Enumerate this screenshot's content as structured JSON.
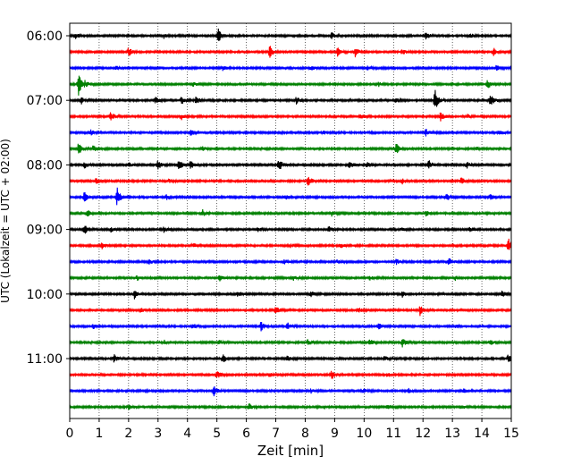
{
  "chart_data": {
    "type": "line",
    "title": "",
    "xlabel": "Zeit  [min]",
    "ylabel": "UTC (Lokalzeit = UTC + 02:00)",
    "xlim": [
      0,
      15
    ],
    "x_ticks": [
      "0",
      "1",
      "2",
      "3",
      "4",
      "5",
      "6",
      "7",
      "8",
      "9",
      "10",
      "11",
      "12",
      "13",
      "14",
      "15"
    ],
    "y_tick_labels": [
      "06:00",
      "07:00",
      "08:00",
      "09:00",
      "10:00",
      "11:00"
    ],
    "grid": "vertical dotted",
    "trace_colors": [
      "#000000",
      "#ff0000",
      "#0000ff",
      "#008000"
    ],
    "traces_per_hour": 4,
    "minutes_per_trace": 15,
    "series": [
      {
        "start": "06:00",
        "color": "#000000",
        "events": [
          [
            5.05,
            1.2
          ],
          [
            0.2,
            0.4
          ],
          [
            3.2,
            0.4
          ],
          [
            8.9,
            0.5
          ],
          [
            12.1,
            0.6
          ],
          [
            13.6,
            0.4
          ]
        ]
      },
      {
        "start": "06:15",
        "color": "#ff0000",
        "events": [
          [
            2.0,
            0.7
          ],
          [
            6.8,
            0.9
          ],
          [
            9.1,
            0.6
          ],
          [
            9.7,
            0.7
          ],
          [
            14.4,
            0.6
          ],
          [
            11.3,
            0.4
          ]
        ]
      },
      {
        "start": "06:30",
        "color": "#0000ff",
        "events": [
          [
            1.6,
            0.3
          ],
          [
            5.2,
            0.3
          ],
          [
            8.2,
            0.3
          ],
          [
            14.5,
            0.5
          ],
          [
            10.1,
            0.3
          ]
        ]
      },
      {
        "start": "06:45",
        "color": "#008000",
        "events": [
          [
            0.3,
            1.6
          ],
          [
            0.5,
            0.6
          ],
          [
            4.2,
            0.3
          ],
          [
            14.2,
            0.7
          ],
          [
            10.5,
            0.3
          ]
        ]
      },
      {
        "start": "07:00",
        "color": "#000000",
        "events": [
          [
            0.4,
            0.5
          ],
          [
            2.9,
            0.6
          ],
          [
            3.8,
            0.6
          ],
          [
            4.3,
            0.8
          ],
          [
            7.7,
            0.5
          ],
          [
            12.4,
            1.8
          ],
          [
            14.3,
            1.1
          ],
          [
            11.1,
            0.4
          ]
        ]
      },
      {
        "start": "07:15",
        "color": "#ff0000",
        "events": [
          [
            1.4,
            0.7
          ],
          [
            3.8,
            0.4
          ],
          [
            9.9,
            0.4
          ],
          [
            12.6,
            0.7
          ],
          [
            13.5,
            0.3
          ]
        ]
      },
      {
        "start": "07:30",
        "color": "#0000ff",
        "events": [
          [
            0.7,
            0.4
          ],
          [
            4.1,
            0.5
          ],
          [
            12.1,
            0.5
          ],
          [
            14.6,
            0.5
          ],
          [
            8.6,
            0.3
          ]
        ]
      },
      {
        "start": "07:45",
        "color": "#008000",
        "events": [
          [
            0.3,
            0.9
          ],
          [
            0.8,
            0.5
          ],
          [
            4.5,
            0.4
          ],
          [
            11.1,
            0.8
          ],
          [
            13.8,
            0.3
          ]
        ]
      },
      {
        "start": "08:00",
        "color": "#000000",
        "events": [
          [
            0.5,
            0.6
          ],
          [
            2.0,
            0.4
          ],
          [
            3.0,
            0.8
          ],
          [
            3.7,
            0.8
          ],
          [
            4.1,
            0.6
          ],
          [
            7.1,
            1.0
          ],
          [
            9.5,
            0.6
          ],
          [
            10.1,
            0.5
          ],
          [
            12.2,
            0.7
          ],
          [
            13.5,
            0.4
          ]
        ]
      },
      {
        "start": "08:15",
        "color": "#ff0000",
        "events": [
          [
            0.9,
            0.4
          ],
          [
            3.4,
            0.3
          ],
          [
            8.1,
            0.8
          ],
          [
            11.3,
            0.4
          ],
          [
            13.3,
            0.5
          ]
        ]
      },
      {
        "start": "08:30",
        "color": "#0000ff",
        "events": [
          [
            0.5,
            0.8
          ],
          [
            1.6,
            1.7
          ],
          [
            3.3,
            0.4
          ],
          [
            7.3,
            0.4
          ],
          [
            12.8,
            0.6
          ],
          [
            14.3,
            0.4
          ]
        ]
      },
      {
        "start": "08:45",
        "color": "#008000",
        "events": [
          [
            0.6,
            0.5
          ],
          [
            4.5,
            0.6
          ],
          [
            8.9,
            0.4
          ],
          [
            12.1,
            0.4
          ]
        ]
      },
      {
        "start": "09:00",
        "color": "#000000",
        "events": [
          [
            0.5,
            0.7
          ],
          [
            1.4,
            0.4
          ],
          [
            3.2,
            0.4
          ],
          [
            6.4,
            0.4
          ],
          [
            8.8,
            0.4
          ],
          [
            11.3,
            0.3
          ],
          [
            13.6,
            0.4
          ]
        ]
      },
      {
        "start": "09:15",
        "color": "#ff0000",
        "events": [
          [
            1.1,
            0.4
          ],
          [
            4.2,
            0.3
          ],
          [
            7.5,
            0.3
          ],
          [
            9.2,
            0.4
          ],
          [
            14.9,
            1.1
          ]
        ]
      },
      {
        "start": "09:30",
        "color": "#0000ff",
        "events": [
          [
            2.7,
            0.4
          ],
          [
            7.3,
            0.3
          ],
          [
            9.1,
            0.3
          ],
          [
            11.1,
            0.4
          ],
          [
            12.9,
            0.7
          ]
        ]
      },
      {
        "start": "09:45",
        "color": "#008000",
        "events": [
          [
            2.3,
            0.3
          ],
          [
            5.1,
            0.4
          ],
          [
            7.6,
            0.3
          ],
          [
            10.2,
            0.3
          ],
          [
            13.1,
            0.3
          ]
        ]
      },
      {
        "start": "10:00",
        "color": "#000000",
        "events": [
          [
            2.2,
            0.7
          ],
          [
            5.7,
            0.4
          ],
          [
            8.2,
            0.4
          ],
          [
            11.3,
            0.5
          ],
          [
            14.7,
            0.5
          ]
        ]
      },
      {
        "start": "10:15",
        "color": "#ff0000",
        "events": [
          [
            2.4,
            0.3
          ],
          [
            7.0,
            0.7
          ],
          [
            9.8,
            0.4
          ],
          [
            11.9,
            0.8
          ]
        ]
      },
      {
        "start": "10:30",
        "color": "#0000ff",
        "events": [
          [
            0.8,
            0.3
          ],
          [
            4.2,
            0.4
          ],
          [
            6.5,
            0.7
          ],
          [
            7.4,
            0.5
          ],
          [
            10.5,
            0.4
          ],
          [
            13.1,
            0.3
          ]
        ]
      },
      {
        "start": "10:45",
        "color": "#008000",
        "events": [
          [
            3.2,
            0.3
          ],
          [
            5.1,
            0.3
          ],
          [
            8.1,
            0.5
          ],
          [
            10.2,
            0.4
          ],
          [
            11.3,
            0.7
          ],
          [
            14.3,
            0.4
          ]
        ]
      },
      {
        "start": "11:00",
        "color": "#000000",
        "events": [
          [
            1.5,
            0.6
          ],
          [
            5.2,
            0.7
          ],
          [
            7.4,
            0.4
          ],
          [
            10.7,
            0.4
          ],
          [
            14.9,
            0.6
          ]
        ]
      },
      {
        "start": "11:15",
        "color": "#ff0000",
        "events": [
          [
            5.0,
            0.6
          ],
          [
            6.8,
            0.4
          ],
          [
            8.9,
            0.7
          ],
          [
            10.8,
            0.4
          ]
        ]
      },
      {
        "start": "11:30",
        "color": "#0000ff",
        "events": [
          [
            4.9,
            0.8
          ],
          [
            8.2,
            0.3
          ],
          [
            10.0,
            0.4
          ],
          [
            11.5,
            0.4
          ],
          [
            13.4,
            0.3
          ]
        ]
      },
      {
        "start": "11:45",
        "color": "#008000",
        "events": [
          [
            2.0,
            0.3
          ],
          [
            6.1,
            0.6
          ],
          [
            10.8,
            0.3
          ],
          [
            13.3,
            0.3
          ]
        ]
      }
    ]
  }
}
